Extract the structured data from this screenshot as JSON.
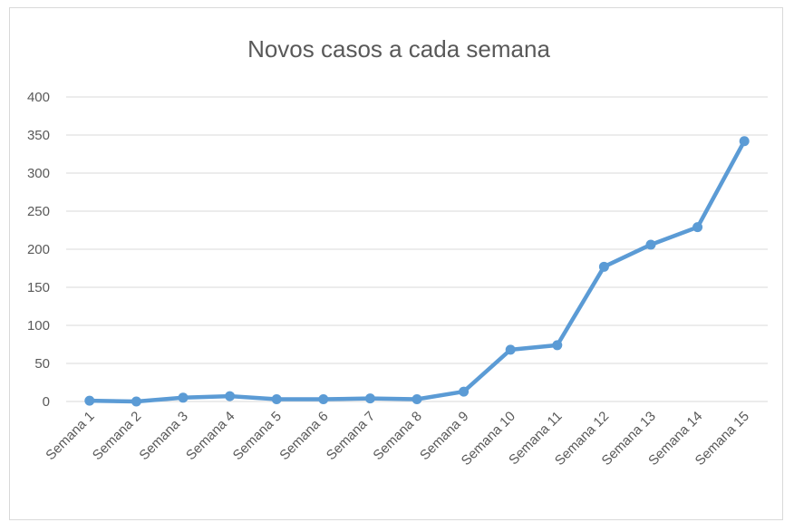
{
  "chart_data": {
    "type": "line",
    "title": "Novos casos a cada semana",
    "xlabel": "",
    "ylabel": "",
    "categories": [
      "Semana 1",
      "Semana 2",
      "Semana 3",
      "Semana 4",
      "Semana 5",
      "Semana 6",
      "Semana 7",
      "Semana 8",
      "Semana 9",
      "Semana 10",
      "Semana 11",
      "Semana 12",
      "Semana 13",
      "Semana 14",
      "Semana 15"
    ],
    "series": [
      {
        "values": [
          1,
          0,
          5,
          7,
          3,
          3,
          4,
          3,
          13,
          68,
          74,
          177,
          206,
          229,
          342
        ]
      }
    ],
    "ylim": [
      0,
      400
    ],
    "yticks": [
      0,
      50,
      100,
      150,
      200,
      250,
      300,
      350,
      400
    ],
    "grid": true,
    "legend": "none",
    "colors": {
      "series": "#5b9bd5",
      "grid": "#d9d9d9",
      "text": "#595959"
    }
  }
}
